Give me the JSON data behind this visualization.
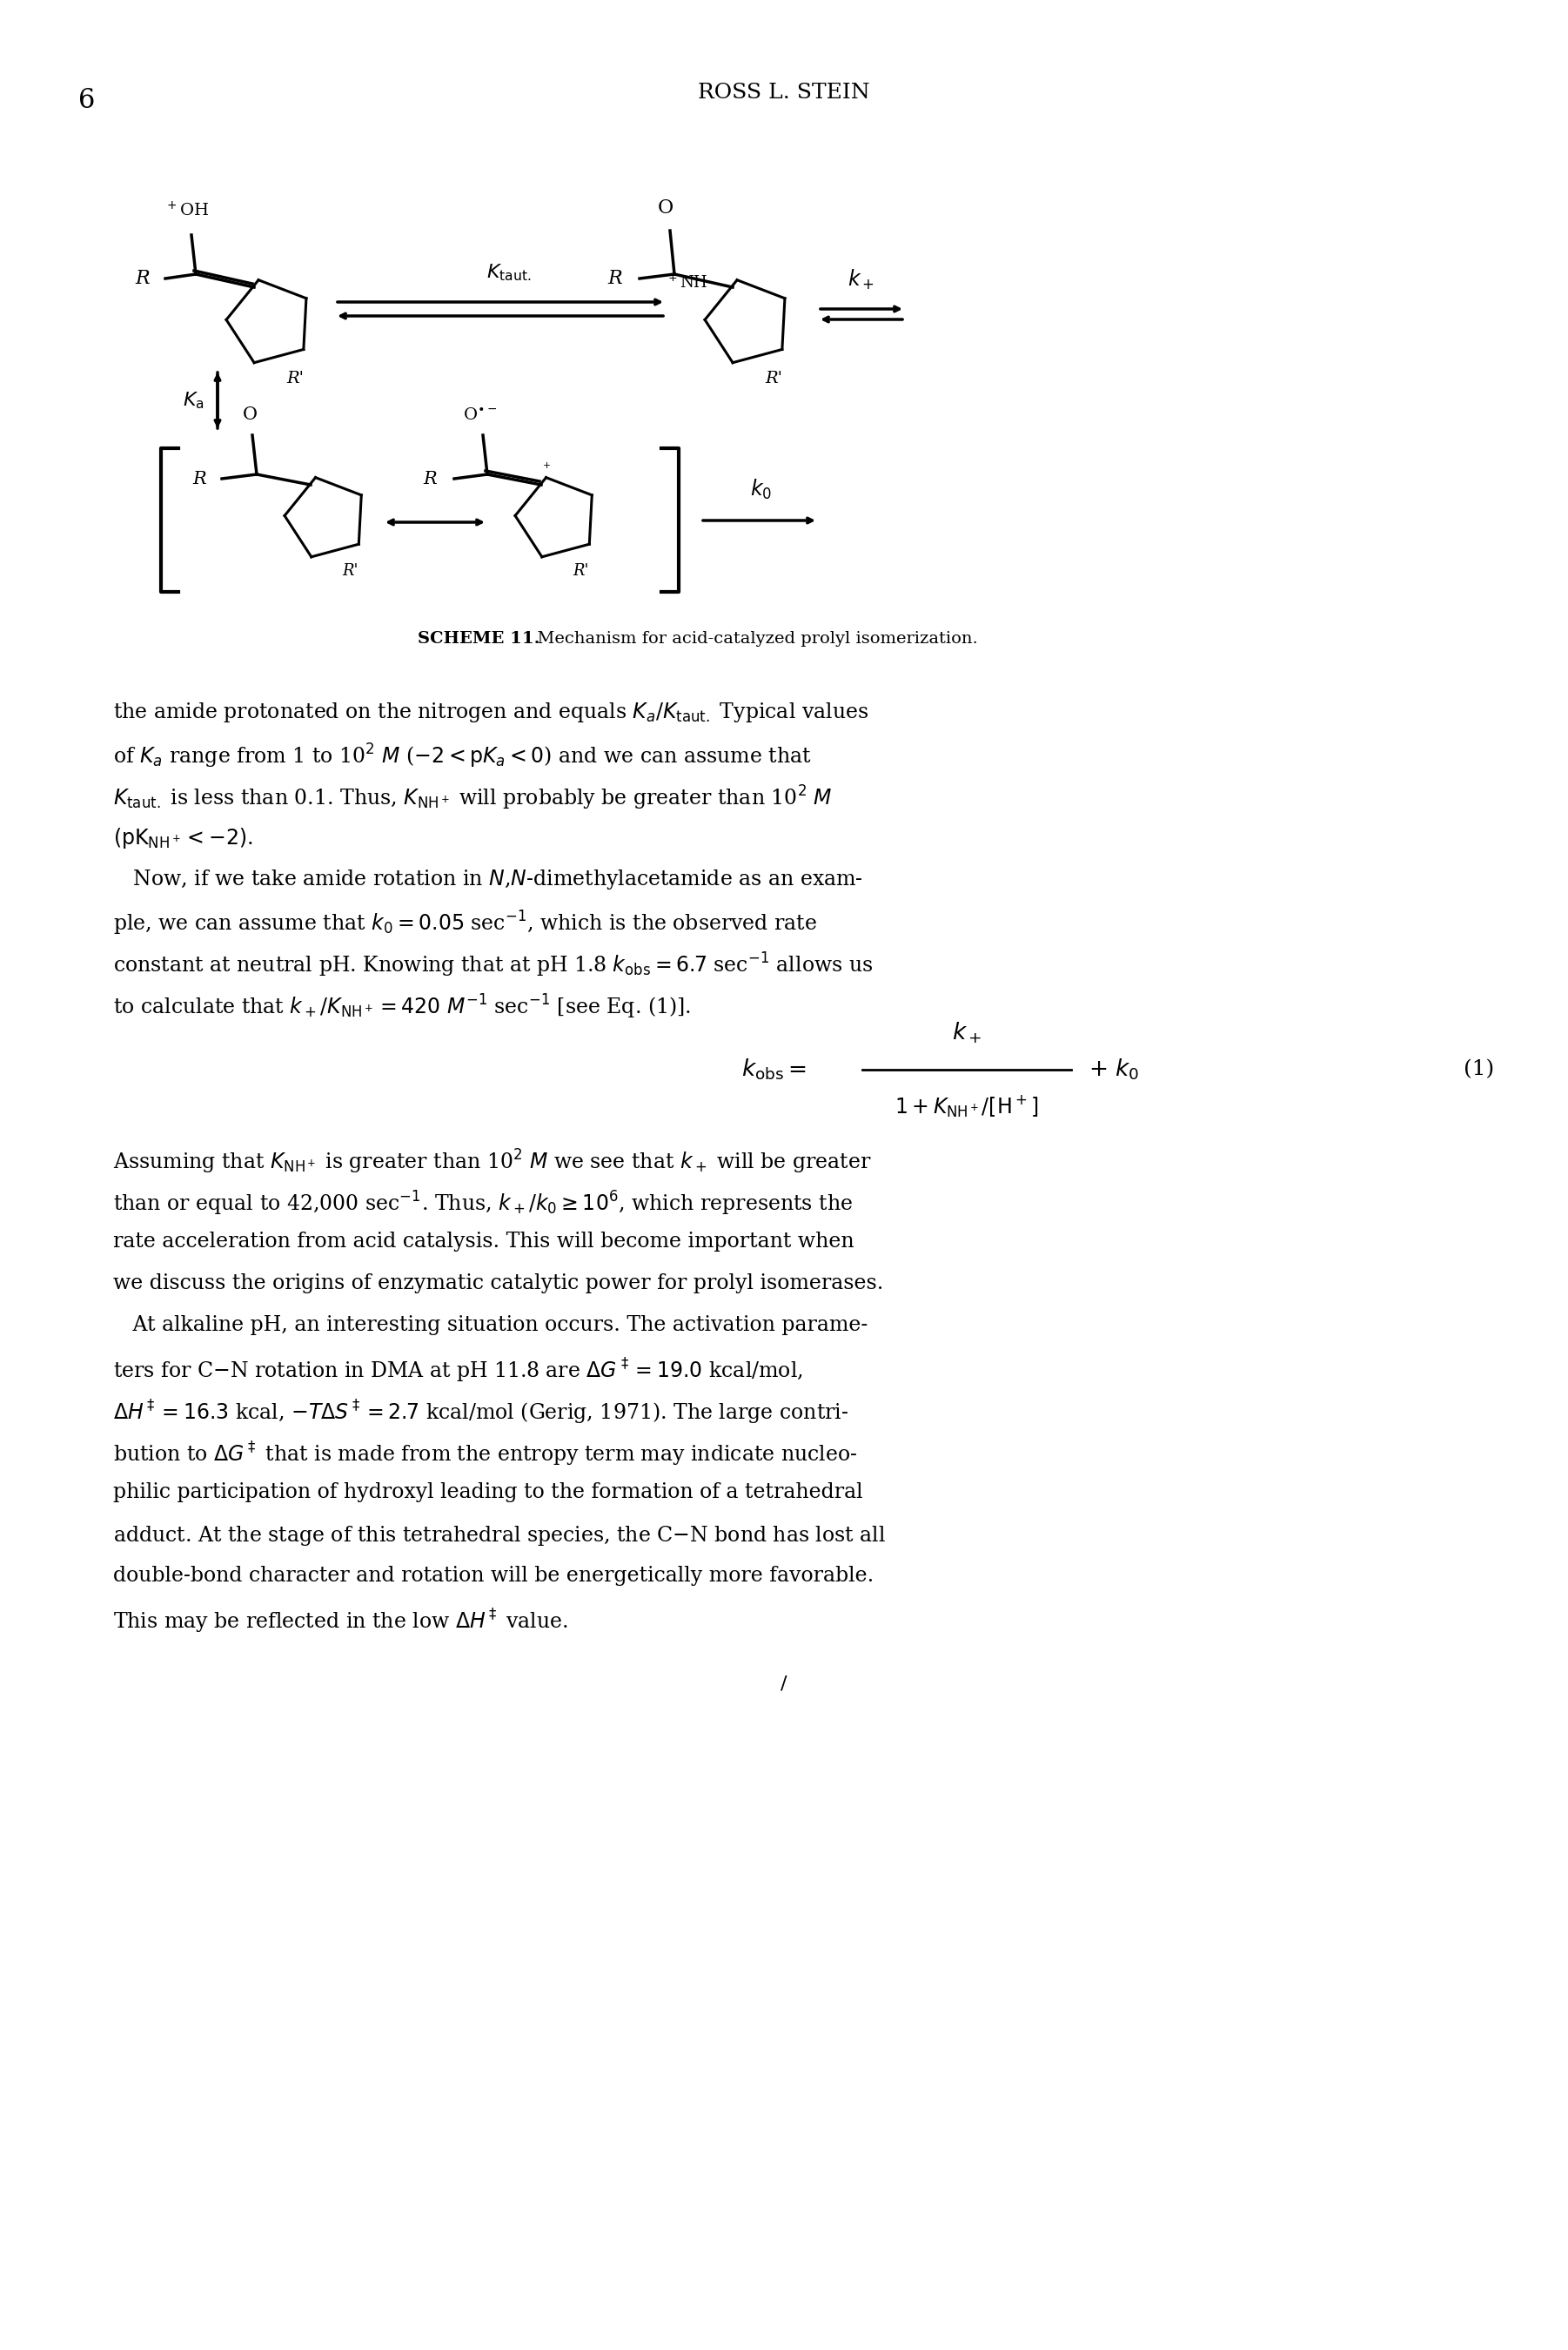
{
  "page_number": "6",
  "header": "ROSS L. STEIN",
  "scheme_label": "SCHEME 11.",
  "scheme_caption": "Mechanism for acid-catalyzed prolyl isomerization.",
  "bg_color": "#ffffff",
  "text_color": "#000000",
  "body_text": [
    "the amide protonated on the nitrogen and equals Kₐ/Kₜₐᵤₜ. Typical values",
    "of Kₐ range from 1 to 10² M (−2 < pKₐ < 0) and we can assume that",
    "Kₜₐᵤₜ. is less than 0.1. Thus, Kᴺᴴ⁺ will probably be greater than 10² M",
    "(pKᴺᴴ⁺ < −2).",
    "   Now, if we take amide rotation in N,N-dimethylacetamide as an exam-",
    "ple, we can assume that k₀ = 0.05 sec⁻¹, which is the observed rate",
    "constant at neutral pH. Knowing that at pH 1.8 k₀₇₈ = 6.7 sec⁻¹ allows us",
    "to calculate that k₊/Kᴺᴴ⁺ = 420 M⁻¹ sec⁻¹ [see Eq. (1)]."
  ],
  "eq_label": "(1)",
  "para2": [
    "Assuming that Kᴺᴴ⁺ is greater than 10² M we see that k₊ will be greater",
    "than or equal to 42,000 sec⁻¹. Thus, k₊/k₀ ≥ 10⁶, which represents the",
    "rate acceleration from acid catalysis. This will become important when",
    "we discuss the origins of enzymatic catalytic power for prolyl isomerases.",
    "   At alkaline pH, an interesting situation occurs. The activation parame-",
    "ters for C–N rotation in DMA at pH 11.8 are ΔG‡ = 19.0 kcal/mol,",
    "ΔH‡ = 16.3 kcal, −TΔS‡ = 2.7 kcal/mol (Gerig, 1971). The large contri-",
    "bution to ΔG‡ that is made from the entropy term may indicate nucleo-",
    "philic participation of hydroxyl leading to the formation of a tetrahedral",
    "adduct. At the stage of this tetrahedral species, the C–N bond has lost all",
    "double-bond character and rotation will be energetically more favorable.",
    "This may be reflected in the low ΔH‡ value."
  ]
}
